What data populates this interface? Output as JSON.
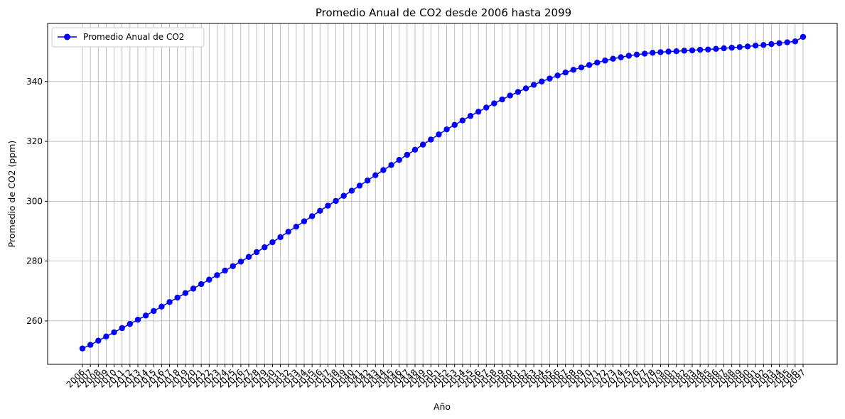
{
  "chart_data": {
    "type": "line",
    "title": "Promedio Anual de CO2 desde 2006 hasta 2099",
    "xlabel": "Año",
    "ylabel": "Promedio de CO2 (ppm)",
    "x": [
      2006,
      2007,
      2008,
      2009,
      2010,
      2011,
      2012,
      2013,
      2014,
      2015,
      2016,
      2017,
      2018,
      2019,
      2020,
      2021,
      2022,
      2023,
      2024,
      2025,
      2026,
      2027,
      2028,
      2029,
      2030,
      2031,
      2032,
      2033,
      2034,
      2035,
      2036,
      2037,
      2038,
      2039,
      2040,
      2041,
      2042,
      2043,
      2044,
      2045,
      2046,
      2047,
      2048,
      2049,
      2050,
      2051,
      2052,
      2053,
      2054,
      2055,
      2056,
      2057,
      2058,
      2059,
      2060,
      2061,
      2062,
      2063,
      2064,
      2065,
      2066,
      2067,
      2068,
      2069,
      2070,
      2071,
      2072,
      2073,
      2074,
      2075,
      2076,
      2077,
      2078,
      2079,
      2080,
      2081,
      2082,
      2083,
      2084,
      2085,
      2086,
      2087,
      2088,
      2089,
      2090,
      2091,
      2092,
      2093,
      2094,
      2095,
      2096,
      2097
    ],
    "series": [
      {
        "name": "Promedio Anual de CO2",
        "color": "#0000ff",
        "values": [
          250.8,
          252.0,
          253.4,
          254.8,
          256.2,
          257.6,
          259.0,
          260.4,
          261.8,
          263.3,
          264.8,
          266.3,
          267.8,
          269.3,
          270.8,
          272.3,
          273.8,
          275.3,
          276.8,
          278.3,
          279.8,
          281.4,
          283.0,
          284.6,
          286.3,
          288.0,
          289.8,
          291.5,
          293.3,
          295.0,
          296.8,
          298.5,
          300.1,
          301.8,
          303.5,
          305.2,
          306.9,
          308.7,
          310.4,
          312.1,
          313.8,
          315.5,
          317.2,
          318.9,
          320.6,
          322.3,
          324.0,
          325.5,
          327.0,
          328.5,
          329.9,
          331.3,
          332.7,
          334.0,
          335.3,
          336.5,
          337.7,
          338.9,
          340.0,
          341.0,
          342.0,
          343.0,
          343.9,
          344.7,
          345.5,
          346.3,
          347.0,
          347.6,
          348.1,
          348.6,
          349.0,
          349.3,
          349.6,
          349.8,
          350.0,
          350.1,
          350.3,
          350.4,
          350.6,
          350.7,
          350.9,
          351.1,
          351.3,
          351.5,
          351.7,
          352.0,
          352.2,
          352.5,
          352.8,
          353.1,
          353.4,
          354.9
        ]
      }
    ],
    "ylim": [
      245.5,
      359.4
    ],
    "yticks": [
      260,
      280,
      300,
      320,
      340
    ],
    "grid": true,
    "legend": "upper left"
  }
}
